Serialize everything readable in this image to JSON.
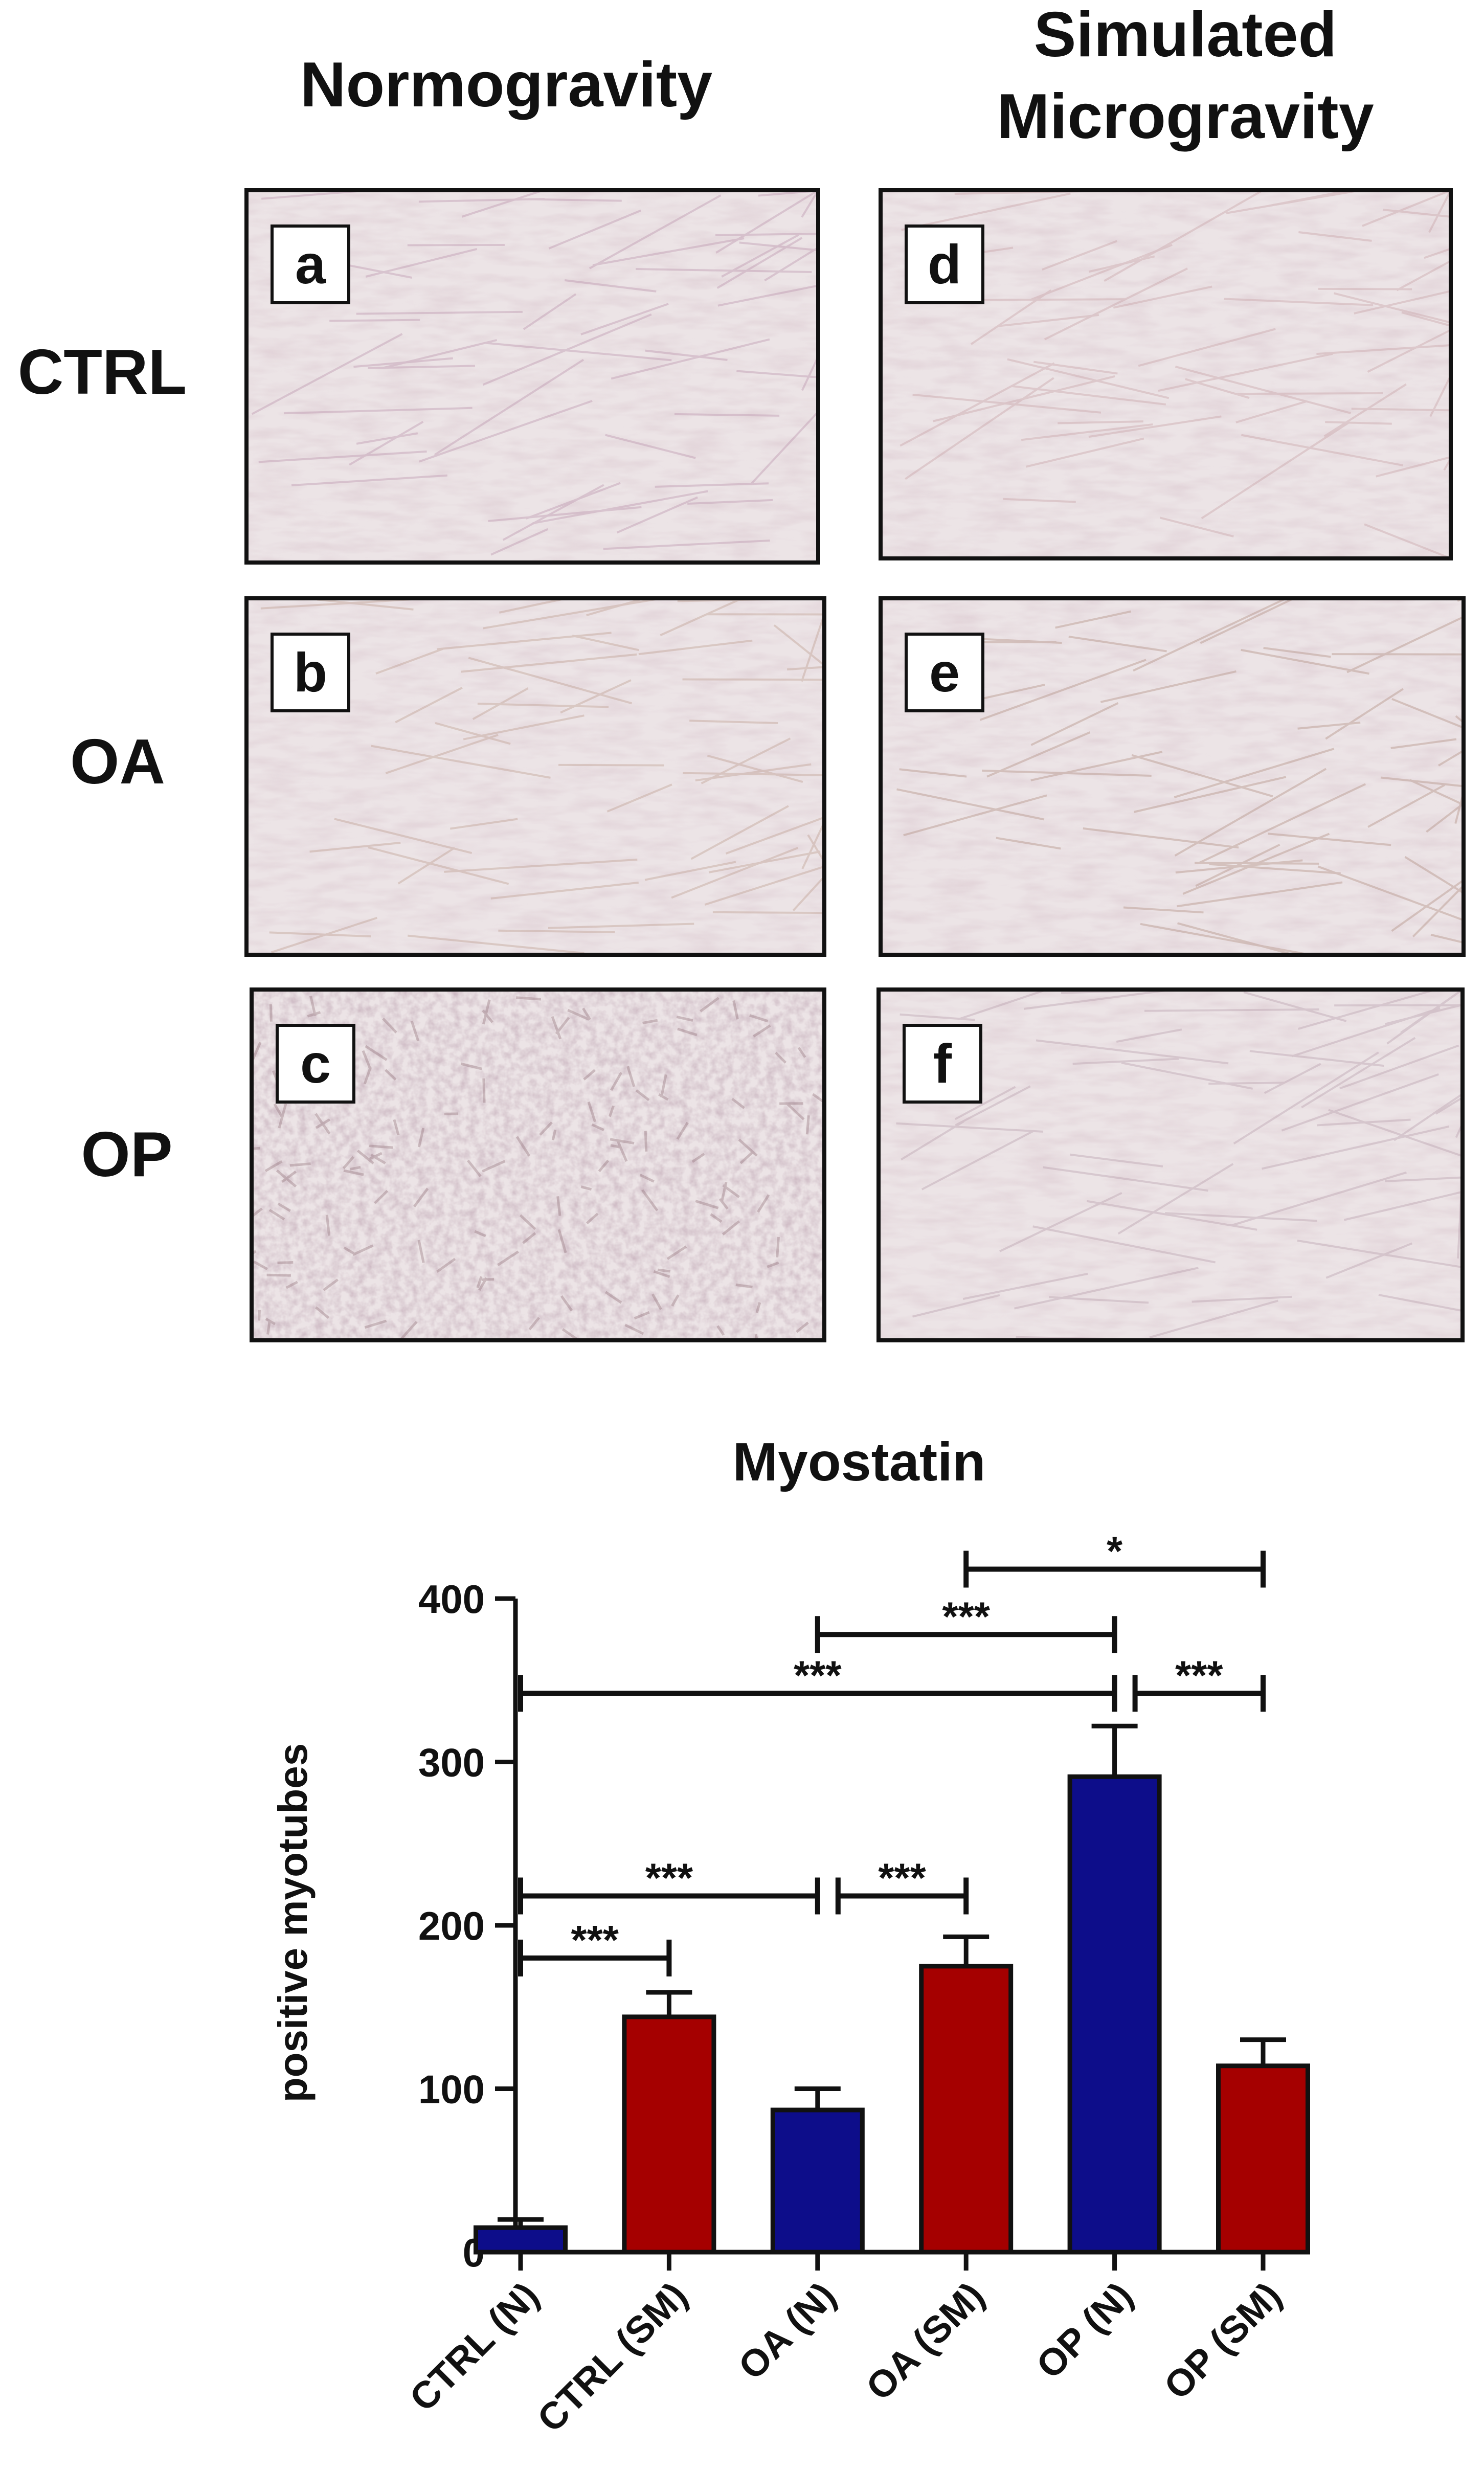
{
  "column_headers": {
    "normogravity": "Normogravity",
    "simulated_line1": "Simulated",
    "simulated_line2": "Microgravity"
  },
  "row_labels": [
    "CTRL",
    "OA",
    "OP"
  ],
  "panels": [
    {
      "letter": "a",
      "tint": "#b58aa6",
      "style": "streaks"
    },
    {
      "letter": "b",
      "tint": "#b89584",
      "style": "streaks"
    },
    {
      "letter": "c",
      "tint": "#8c6a72",
      "style": "dense"
    },
    {
      "letter": "d",
      "tint": "#c49a9e",
      "style": "streaks"
    },
    {
      "letter": "e",
      "tint": "#a98373",
      "style": "streaks"
    },
    {
      "letter": "f",
      "tint": "#b297a6",
      "style": "streaks"
    }
  ],
  "chart_data": {
    "type": "bar",
    "title": "Myostatin",
    "ylabel": "positive myotubes",
    "xlabel": "",
    "ylim": [
      0,
      400
    ],
    "yticks": [
      0,
      100,
      200,
      300,
      400
    ],
    "categories": [
      "CTRL (N)",
      "CTRL (SM)",
      "OA (N)",
      "OA (SM)",
      "OP (N)",
      "OP (SM)"
    ],
    "values": [
      15,
      144,
      87,
      175,
      291,
      114
    ],
    "errors": [
      5,
      15,
      13,
      18,
      31,
      16
    ],
    "colors": [
      "#0d0d8a",
      "#a50000",
      "#0d0d8a",
      "#a50000",
      "#0d0d8a",
      "#a50000"
    ],
    "significance": [
      {
        "from": 0,
        "to": 1,
        "y": 180,
        "label": "***"
      },
      {
        "from": 0,
        "to": 2,
        "y": 218,
        "label": "***"
      },
      {
        "from": 2,
        "to": 3,
        "y": 218,
        "label": "***"
      },
      {
        "from": 0,
        "to": 4,
        "y": 342,
        "label": "***"
      },
      {
        "from": 4,
        "to": 5,
        "y": 342,
        "label": "***"
      },
      {
        "from": 2,
        "to": 4,
        "y": 378,
        "label": "***"
      },
      {
        "from": 3,
        "to": 5,
        "y": 418,
        "label": "*"
      }
    ]
  }
}
